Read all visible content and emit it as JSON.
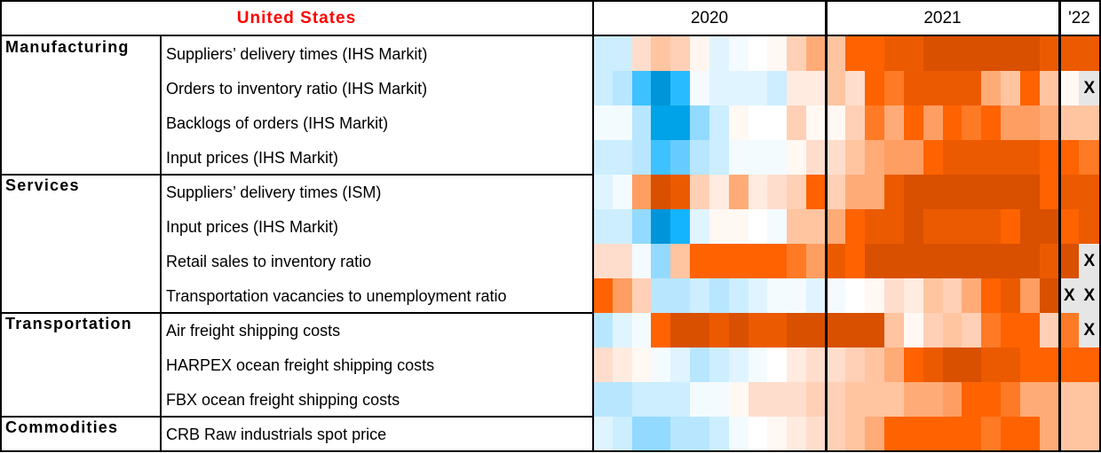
{
  "header": {
    "title": "United States",
    "years": [
      "2020",
      "2021",
      "'22"
    ]
  },
  "legend_note": "X",
  "colors": {
    "title": "#ff0000",
    "missing": "#e6e6e6"
  },
  "groups": [
    {
      "label": "Manufacturing",
      "rows": [
        0,
        1,
        2,
        3
      ]
    },
    {
      "label": "Services",
      "rows": [
        4,
        5,
        6,
        7
      ]
    },
    {
      "label": "Transportation",
      "rows": [
        8,
        9,
        10
      ]
    },
    {
      "label": "Commodities",
      "rows": [
        11
      ]
    }
  ],
  "chart_data": {
    "type": "heatmap",
    "title": "United States",
    "columns": {
      "2020": 12,
      "2021": 12,
      "'22": 2
    },
    "missing_marker": "X",
    "rows": [
      {
        "label": "Suppliers’ delivery times (IHS Markit)",
        "cells": [
          "#cceeff",
          "#cceeff",
          "#ffddcc",
          "#ffc4a0",
          "#ffd0b5",
          "#fff6f0",
          "#e0f4ff",
          "#f3fbff",
          "#ffffff",
          "#fff8f3",
          "#ffd0b5",
          "#ffab77",
          "#ffc4a0",
          "#ff6200",
          "#ff6200",
          "#ec5a00",
          "#ec5a00",
          "#d95000",
          "#d95000",
          "#d95000",
          "#d95000",
          "#d95000",
          "#d95000",
          "#ec5a00",
          "#ec5a00",
          "#ec5a00"
        ]
      },
      {
        "label": "Orders to inventory ratio (IHS Markit)",
        "cells": [
          "#cceeff",
          "#b8e6ff",
          "#3dc1ff",
          "#0095d9",
          "#29bbff",
          "#f3fbff",
          "#e0f4ff",
          "#e0f4ff",
          "#e0f4ff",
          "#cceeff",
          "#ffebe0",
          "#ffebe0",
          "#ffc4a0",
          "#ffddcc",
          "#ff6200",
          "#ff7a25",
          "#ec5a00",
          "#ec5a00",
          "#ec5a00",
          "#ec5a00",
          "#ffab77",
          "#ffc4a0",
          "#ff6200",
          "#ffc4a0",
          "#fff8f3",
          "X"
        ]
      },
      {
        "label": "Backlogs of orders (IHS Markit)",
        "cells": [
          "#f3fbff",
          "#f3fbff",
          "#b8e6ff",
          "#00a2e8",
          "#00a2e8",
          "#92daff",
          "#cceeff",
          "#fff8f3",
          "#ffffff",
          "#ffffff",
          "#ffd0b5",
          "#fff8f3",
          "#fff8f3",
          "#ffd0b5",
          "#ff7a25",
          "#ffab77",
          "#ff6200",
          "#ff9e62",
          "#ff6200",
          "#ff7a25",
          "#ff6200",
          "#ff9e62",
          "#ff9e62",
          "#ffab77",
          "#ffc4a0",
          "#ffc4a0"
        ]
      },
      {
        "label": "Input prices (IHS Markit)",
        "cells": [
          "#cceeff",
          "#cceeff",
          "#b8e6ff",
          "#3dc1ff",
          "#66ccff",
          "#b8e6ff",
          "#cceeff",
          "#f3fbff",
          "#f3fbff",
          "#f3fbff",
          "#fff8f3",
          "#ffddcc",
          "#ffddcc",
          "#ffc4a0",
          "#ffab77",
          "#ff9e62",
          "#ff9e62",
          "#ff6200",
          "#ec5a00",
          "#ec5a00",
          "#ec5a00",
          "#ec5a00",
          "#ec5a00",
          "#ff6200",
          "#ff6200",
          "#ff7a25"
        ]
      },
      {
        "label": "Suppliers’ delivery times (ISM)",
        "cells": [
          "#e0f4ff",
          "#f3fbff",
          "#ff9e62",
          "#d95000",
          "#ec5a00",
          "#ffd0b5",
          "#ffebe0",
          "#ffab77",
          "#ffebe0",
          "#ffddcc",
          "#ffd0b5",
          "#ff6200",
          "#ffd0b5",
          "#ffab77",
          "#ffab77",
          "#ec5a00",
          "#d95000",
          "#d95000",
          "#d95000",
          "#d95000",
          "#d95000",
          "#d95000",
          "#d95000",
          "#ff6200",
          "#ec5a00",
          "#ec5a00"
        ]
      },
      {
        "label": "Input prices (IHS Markit)",
        "cells": [
          "#cceeff",
          "#cceeff",
          "#92daff",
          "#0095d9",
          "#14b4ff",
          "#e0f4ff",
          "#fff8f3",
          "#fff8f3",
          "#ffffff",
          "#f3fbff",
          "#ffc4a0",
          "#ffc4a0",
          "#ffab77",
          "#ff6200",
          "#ec5a00",
          "#ec5a00",
          "#d95000",
          "#ec5a00",
          "#ec5a00",
          "#ec5a00",
          "#ec5a00",
          "#ff6200",
          "#d95000",
          "#d95000",
          "#ff6200",
          "#ec5a00"
        ]
      },
      {
        "label": "Retail sales to inventory ratio",
        "cells": [
          "#ffddcc",
          "#ffddcc",
          "#f3fbff",
          "#92daff",
          "#ffc4a0",
          "#ff6200",
          "#ff6200",
          "#ff6200",
          "#ff6200",
          "#ff6200",
          "#ff7a25",
          "#ff9e62",
          "#ec5a00",
          "#ff6200",
          "#d95000",
          "#d95000",
          "#d95000",
          "#d95000",
          "#d95000",
          "#d95000",
          "#d95000",
          "#d95000",
          "#d95000",
          "#ec5a00",
          "#d95000",
          "X"
        ]
      },
      {
        "label": "Transportation vacancies to unemployment ratio",
        "cells": [
          "#ff6200",
          "#ff9e62",
          "#ffd0b5",
          "#b8e6ff",
          "#b8e6ff",
          "#cceeff",
          "#b8e6ff",
          "#cceeff",
          "#e0f4ff",
          "#f3fbff",
          "#f3fbff",
          "#e0f4ff",
          "#f3fbff",
          "#ffffff",
          "#fff8f3",
          "#ffddcc",
          "#ffebe0",
          "#ffc4a0",
          "#ffd0b5",
          "#ffab77",
          "#ff6200",
          "#ec5a00",
          "#ff9e62",
          "#d95000",
          "X",
          "X"
        ]
      },
      {
        "label": "Air freight shipping costs",
        "cells": [
          "#b8e6ff",
          "#e0f4ff",
          "#f3fbff",
          "#ff6200",
          "#d95000",
          "#d95000",
          "#ec5a00",
          "#d95000",
          "#ec5a00",
          "#ec5a00",
          "#d95000",
          "#d95000",
          "#d95000",
          "#d95000",
          "#d95000",
          "#ffc4a0",
          "#fff8f3",
          "#ffd0b5",
          "#ffc4a0",
          "#ffd0b5",
          "#ff7a25",
          "#ff6200",
          "#ff6200",
          "#ffd0b5",
          "#ff7a25",
          "X"
        ]
      },
      {
        "label": "HARPEX ocean freight shipping costs",
        "cells": [
          "#ffddcc",
          "#ffebe0",
          "#fff8f3",
          "#f3fbff",
          "#e0f4ff",
          "#b8e6ff",
          "#cceeff",
          "#e0f4ff",
          "#f3fbff",
          "#ffffff",
          "#ffebe0",
          "#ffddcc",
          "#ffddcc",
          "#ffd0b5",
          "#ffc4a0",
          "#ffab77",
          "#ff6200",
          "#ec5a00",
          "#d95000",
          "#d95000",
          "#ec5a00",
          "#ec5a00",
          "#ff6200",
          "#ff6200",
          "#ff6200",
          "#ff6200"
        ]
      },
      {
        "label": "FBX ocean freight shipping costs",
        "cells": [
          "#b8e6ff",
          "#b8e6ff",
          "#cceeff",
          "#cceeff",
          "#cceeff",
          "#f3fbff",
          "#f3fbff",
          "#fff8f3",
          "#ffddcc",
          "#ffddcc",
          "#ffddcc",
          "#ffd0b5",
          "#ffd0b5",
          "#ffc4a0",
          "#ffc4a0",
          "#ffc4a0",
          "#ffab77",
          "#ffab77",
          "#ff9e62",
          "#ff6200",
          "#ff6200",
          "#ff7a25",
          "#ffab77",
          "#ffab77",
          "#ffc4a0",
          "#ffc4a0"
        ]
      },
      {
        "label": "CRB Raw industrials spot price",
        "cells": [
          "#e0f4ff",
          "#cceeff",
          "#92daff",
          "#92daff",
          "#b8e6ff",
          "#b8e6ff",
          "#cceeff",
          "#f3fbff",
          "#ffffff",
          "#fff8f3",
          "#ffebe0",
          "#ffddcc",
          "#ffd0b5",
          "#ffc4a0",
          "#ffab77",
          "#ff6200",
          "#ff6200",
          "#ff6200",
          "#ff6200",
          "#ff6200",
          "#ff7a25",
          "#ff6200",
          "#ff6200",
          "#ffab77",
          "#ffc4a0",
          "#ffc4a0"
        ]
      }
    ]
  }
}
